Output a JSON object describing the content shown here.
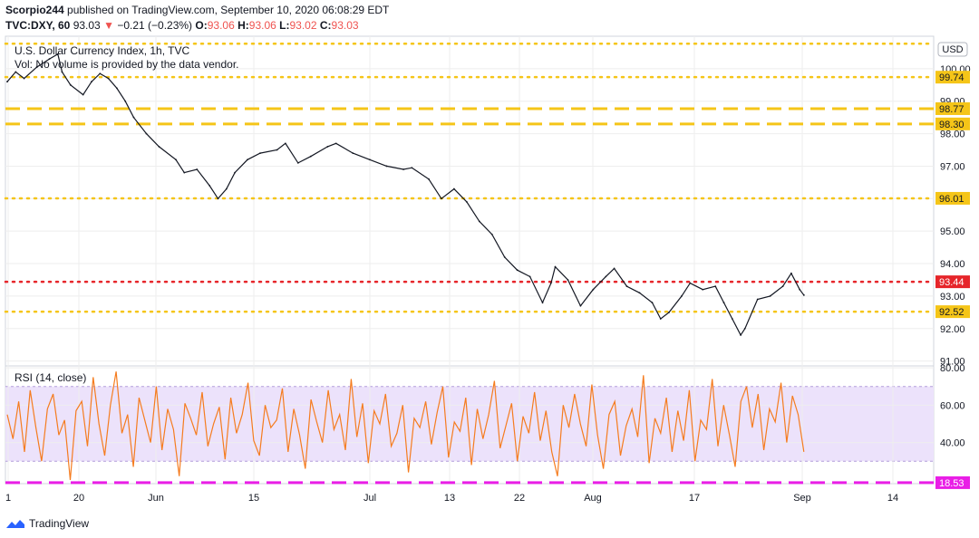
{
  "header": {
    "author": "Scorpio244",
    "published_on": "published on TradingView.com, September 10, 2020 06:08:29 EDT",
    "symbol": "TVC:DXY, 60",
    "last": "93.03",
    "change_arrow": "▼",
    "change": "−0.21 (−0.23%)",
    "o_label": "O:",
    "o_value": "93.06",
    "h_label": "H:",
    "h_value": "93.06",
    "l_label": "L:",
    "l_value": "93.02",
    "c_label": "C:",
    "c_value": "93.03"
  },
  "legend": {
    "title": "U.S. Dollar Currency Index, 1h, TVC",
    "volume_note": "Vol: No volume is provided by the data vendor.",
    "rsi_title": "RSI (14, close)"
  },
  "currency_badge": "USD",
  "footer": {
    "logo_text": "TradingView"
  },
  "colors": {
    "price_line": "#131722",
    "rsi_line": "#f57c1f",
    "rsi_band": "#ece2fb",
    "yellow": "#f5c518",
    "red": "#e6252a",
    "magenta": "#e91ee6",
    "grid": "#eeeeee"
  },
  "chart_data": [
    {
      "type": "line",
      "name": "price",
      "x_ticks": [
        "1",
        "20",
        "Jun",
        "15",
        "Jul",
        "13",
        "22",
        "Aug",
        "17",
        "Sep",
        "14"
      ],
      "y_ticks": [
        "100.00",
        "99.00",
        "98.00",
        "97.00",
        "96.00",
        "95.00",
        "94.00",
        "93.00",
        "92.00",
        "91.00"
      ],
      "ylim": [
        90.85,
        101.0
      ],
      "points": [
        [
          0,
          99.6
        ],
        [
          0.01,
          99.9
        ],
        [
          0.02,
          99.7
        ],
        [
          0.035,
          100.05
        ],
        [
          0.05,
          100.3
        ],
        [
          0.06,
          100.45
        ],
        [
          0.065,
          99.9
        ],
        [
          0.075,
          99.5
        ],
        [
          0.09,
          99.2
        ],
        [
          0.1,
          99.6
        ],
        [
          0.11,
          99.85
        ],
        [
          0.12,
          99.7
        ],
        [
          0.13,
          99.4
        ],
        [
          0.14,
          99.0
        ],
        [
          0.15,
          98.5
        ],
        [
          0.165,
          98.0
        ],
        [
          0.18,
          97.6
        ],
        [
          0.2,
          97.2
        ],
        [
          0.21,
          96.8
        ],
        [
          0.225,
          96.9
        ],
        [
          0.24,
          96.4
        ],
        [
          0.25,
          96.0
        ],
        [
          0.26,
          96.3
        ],
        [
          0.27,
          96.8
        ],
        [
          0.285,
          97.2
        ],
        [
          0.3,
          97.4
        ],
        [
          0.32,
          97.5
        ],
        [
          0.33,
          97.7
        ],
        [
          0.345,
          97.1
        ],
        [
          0.36,
          97.3
        ],
        [
          0.38,
          97.6
        ],
        [
          0.39,
          97.7
        ],
        [
          0.41,
          97.4
        ],
        [
          0.43,
          97.2
        ],
        [
          0.45,
          97.0
        ],
        [
          0.47,
          96.9
        ],
        [
          0.48,
          96.95
        ],
        [
          0.5,
          96.6
        ],
        [
          0.515,
          96.0
        ],
        [
          0.53,
          96.3
        ],
        [
          0.545,
          95.9
        ],
        [
          0.56,
          95.3
        ],
        [
          0.575,
          94.9
        ],
        [
          0.59,
          94.2
        ],
        [
          0.605,
          93.8
        ],
        [
          0.62,
          93.6
        ],
        [
          0.635,
          92.8
        ],
        [
          0.645,
          93.4
        ],
        [
          0.65,
          93.9
        ],
        [
          0.665,
          93.5
        ],
        [
          0.68,
          92.7
        ],
        [
          0.695,
          93.2
        ],
        [
          0.71,
          93.6
        ],
        [
          0.72,
          93.85
        ],
        [
          0.735,
          93.3
        ],
        [
          0.75,
          93.1
        ],
        [
          0.765,
          92.8
        ],
        [
          0.775,
          92.3
        ],
        [
          0.785,
          92.5
        ],
        [
          0.8,
          93.0
        ],
        [
          0.81,
          93.4
        ],
        [
          0.825,
          93.2
        ],
        [
          0.84,
          93.3
        ],
        [
          0.85,
          92.8
        ],
        [
          0.86,
          92.3
        ],
        [
          0.87,
          91.8
        ],
        [
          0.875,
          92.0
        ],
        [
          0.89,
          92.9
        ],
        [
          0.905,
          93.0
        ],
        [
          0.92,
          93.3
        ],
        [
          0.93,
          93.7
        ],
        [
          0.94,
          93.2
        ],
        [
          0.945,
          93.03
        ]
      ]
    },
    {
      "type": "line",
      "name": "RSI",
      "y_ticks": [
        "80.00",
        "60.00",
        "40.00"
      ],
      "ylim": [
        18,
        81
      ],
      "band": [
        30,
        70
      ],
      "values": [
        55,
        42,
        62,
        35,
        68,
        48,
        30,
        58,
        66,
        44,
        52,
        20,
        57,
        62,
        38,
        75,
        50,
        33,
        60,
        78,
        45,
        55,
        27,
        64,
        52,
        40,
        70,
        36,
        58,
        47,
        22,
        61,
        53,
        44,
        67,
        38,
        50,
        59,
        31,
        64,
        45,
        55,
        72,
        41,
        33,
        60,
        48,
        52,
        69,
        35,
        58,
        44,
        26,
        63,
        51,
        40,
        68,
        47,
        55,
        36,
        74,
        43,
        61,
        29,
        57,
        50,
        66,
        38,
        45,
        60,
        24,
        53,
        48,
        62,
        39,
        56,
        70,
        32,
        51,
        46,
        64,
        28,
        58,
        42,
        55,
        73,
        37,
        49,
        61,
        30,
        54,
        45,
        67,
        41,
        57,
        35,
        22,
        60,
        48,
        66,
        50,
        38,
        71,
        44,
        26,
        55,
        62,
        33,
        49,
        58,
        43,
        76,
        29,
        53,
        45,
        64,
        35,
        57,
        41,
        68,
        30,
        52,
        47,
        74,
        38,
        60,
        44,
        27,
        62,
        70,
        48,
        66,
        36,
        58,
        51,
        72,
        40,
        65,
        55,
        35
      ]
    }
  ],
  "levels": [
    {
      "label": "99.74",
      "value": 99.74,
      "style": "dotted",
      "color": "yellow"
    },
    {
      "label": "98.77",
      "value": 98.77,
      "style": "dashed",
      "color": "yellow"
    },
    {
      "label": "98.30",
      "value": 98.3,
      "style": "dashed",
      "color": "yellow"
    },
    {
      "label": "96.01",
      "value": 96.01,
      "style": "dotted",
      "color": "yellow"
    },
    {
      "label": "93.44",
      "value": 93.44,
      "style": "dotted",
      "color": "red"
    },
    {
      "label": "92.52",
      "value": 92.52,
      "style": "dotted",
      "color": "yellow"
    }
  ],
  "top_level": {
    "value": 100.77,
    "style": "dotted",
    "color": "yellow"
  },
  "rsi_level": {
    "label": "18.53",
    "value": 18.53,
    "style": "dashed",
    "color": "magenta"
  }
}
